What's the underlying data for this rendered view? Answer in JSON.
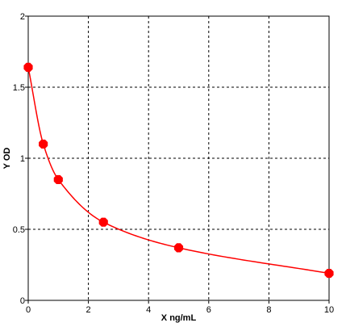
{
  "chart_data": {
    "type": "scatter",
    "title": "",
    "xlabel": "X ng/mL",
    "ylabel": "Y OD",
    "xlim": [
      0,
      10
    ],
    "ylim": [
      0,
      2
    ],
    "x_ticks": [
      "0",
      "2",
      "4",
      "6",
      "8",
      "10"
    ],
    "y_ticks": [
      "0",
      "0.5",
      "1",
      "1.5",
      "2"
    ],
    "grid": true,
    "fit_curve": true,
    "series": [
      {
        "x": [
          0,
          0.5,
          1,
          2.5,
          5,
          10
        ],
        "values": [
          1.64,
          1.1,
          0.85,
          0.55,
          0.37,
          0.19
        ],
        "color": "#ff0000"
      }
    ]
  }
}
